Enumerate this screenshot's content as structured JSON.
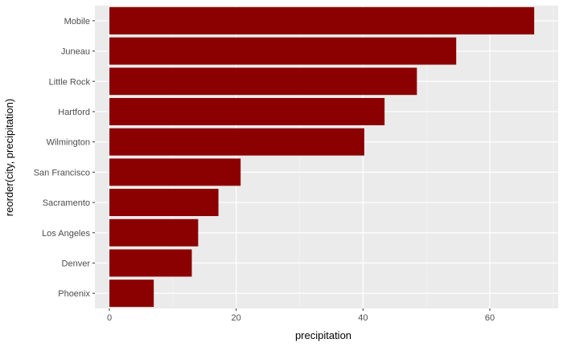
{
  "chart_data": {
    "type": "bar",
    "orientation": "horizontal",
    "categories": [
      "Phoenix",
      "Denver",
      "Los Angeles",
      "Sacramento",
      "San Francisco",
      "Wilmington",
      "Hartford",
      "Little Rock",
      "Juneau",
      "Mobile"
    ],
    "values": [
      7.0,
      13.0,
      14.0,
      17.2,
      20.7,
      40.2,
      43.4,
      48.5,
      54.7,
      67.0
    ],
    "xlabel": "precipitation",
    "ylabel": "reorder(city, precipitation)",
    "xlim": [
      0,
      70
    ],
    "xticks": [
      0,
      20,
      40,
      60
    ],
    "grid": true,
    "colors": {
      "bar": "#8B0000",
      "panel": "#EBEBEB",
      "grid_major": "#FFFFFF",
      "tick_text": "#4D4D4D"
    }
  }
}
